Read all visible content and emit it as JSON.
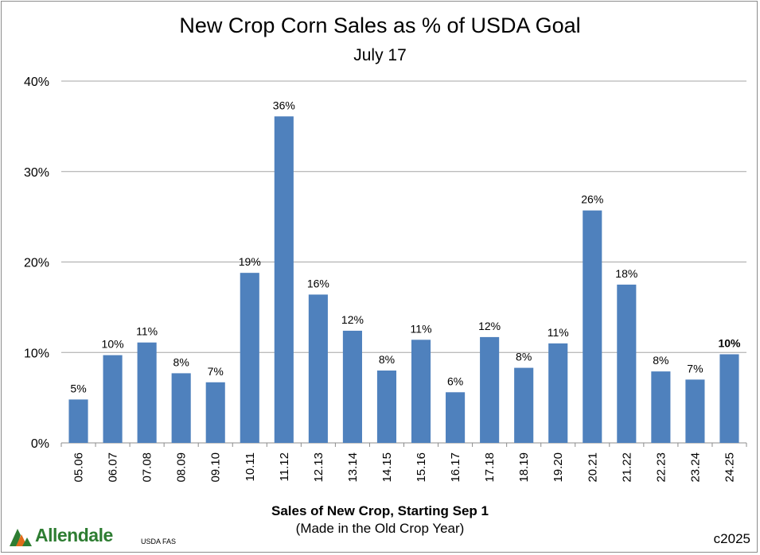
{
  "chart_data": {
    "type": "bar",
    "title": "New Crop Corn Sales as % of USDA Goal",
    "subtitle": "July 17",
    "xlabel": "Sales of New Crop, Starting Sep 1",
    "xlabel_sub": "(Made in the Old Crop Year)",
    "ylabel": "",
    "ylim": [
      0,
      40
    ],
    "yticks": [
      0,
      10,
      20,
      30,
      40
    ],
    "ytick_labels": [
      "0%",
      "10%",
      "20%",
      "30%",
      "40%"
    ],
    "grid": true,
    "categories": [
      "05.06",
      "06.07",
      "07.08",
      "08.09",
      "09.10",
      "10.11",
      "11.12",
      "12.13",
      "13.14",
      "14.15",
      "15.16",
      "16.17",
      "17.18",
      "18.19",
      "19.20",
      "20.21",
      "21.22",
      "22.23",
      "23.24",
      "24.25"
    ],
    "values": [
      4.8,
      9.7,
      11.1,
      7.7,
      6.7,
      18.8,
      36.1,
      16.4,
      12.4,
      8.0,
      11.4,
      5.6,
      11.7,
      8.3,
      11.0,
      25.7,
      17.5,
      7.9,
      7.0,
      9.8
    ],
    "data_labels": [
      "5%",
      "10%",
      "11%",
      "8%",
      "7%",
      "19%",
      "36%",
      "16%",
      "12%",
      "8%",
      "11%",
      "6%",
      "12%",
      "8%",
      "11%",
      "26%",
      "18%",
      "8%",
      "7%",
      "10%"
    ],
    "highlight_last_label": true,
    "bar_color": "#4f81bd"
  },
  "footer": {
    "logo_text": "Allendale",
    "source": "USDA FAS",
    "copyright": "c2025"
  },
  "colors": {
    "bar": "#4f81bd",
    "grid": "#a6a6a6",
    "logo_green": "#2e7d32",
    "logo_orange": "#e06c1a"
  }
}
